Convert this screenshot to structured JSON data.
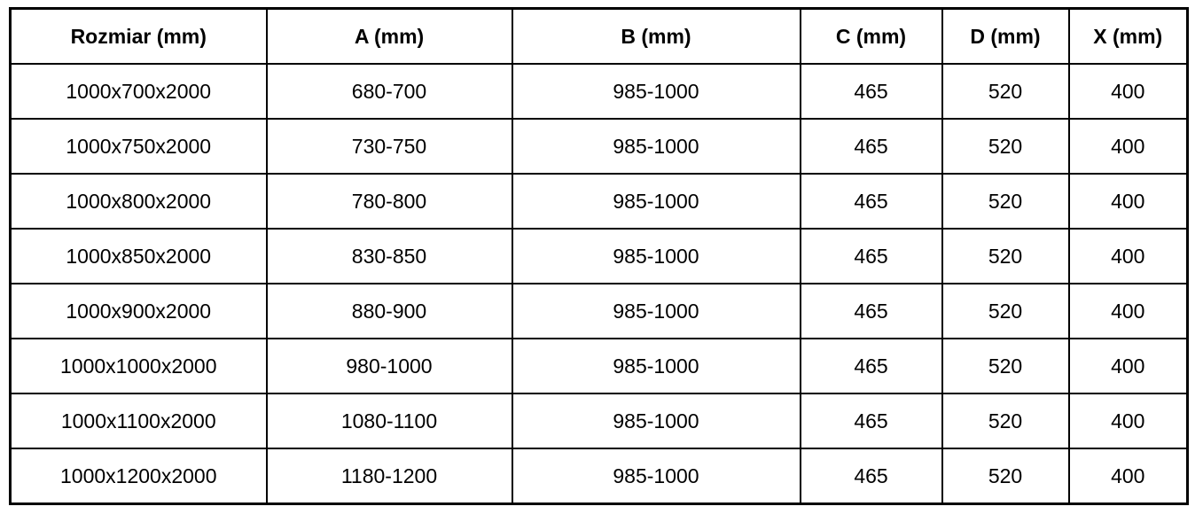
{
  "table": {
    "columns": [
      {
        "key": "rozmiar",
        "label": "Rozmiar (mm)"
      },
      {
        "key": "a",
        "label": "A (mm)"
      },
      {
        "key": "b",
        "label": "B (mm)"
      },
      {
        "key": "c",
        "label": "C (mm)"
      },
      {
        "key": "d",
        "label": "D (mm)"
      },
      {
        "key": "x",
        "label": "X (mm)"
      }
    ],
    "rows": [
      [
        "1000x700x2000",
        "680-700",
        "985-1000",
        "465",
        "520",
        "400"
      ],
      [
        "1000x750x2000",
        "730-750",
        "985-1000",
        "465",
        "520",
        "400"
      ],
      [
        "1000x800x2000",
        "780-800",
        "985-1000",
        "465",
        "520",
        "400"
      ],
      [
        "1000x850x2000",
        "830-850",
        "985-1000",
        "465",
        "520",
        "400"
      ],
      [
        "1000x900x2000",
        "880-900",
        "985-1000",
        "465",
        "520",
        "400"
      ],
      [
        "1000x1000x2000",
        "980-1000",
        "985-1000",
        "465",
        "520",
        "400"
      ],
      [
        "1000x1100x2000",
        "1080-1100",
        "985-1000",
        "465",
        "520",
        "400"
      ],
      [
        "1000x1200x2000",
        "1180-1200",
        "985-1000",
        "465",
        "520",
        "400"
      ]
    ],
    "colors": {
      "border": "#000000",
      "text": "#000000",
      "background": "#ffffff"
    }
  }
}
